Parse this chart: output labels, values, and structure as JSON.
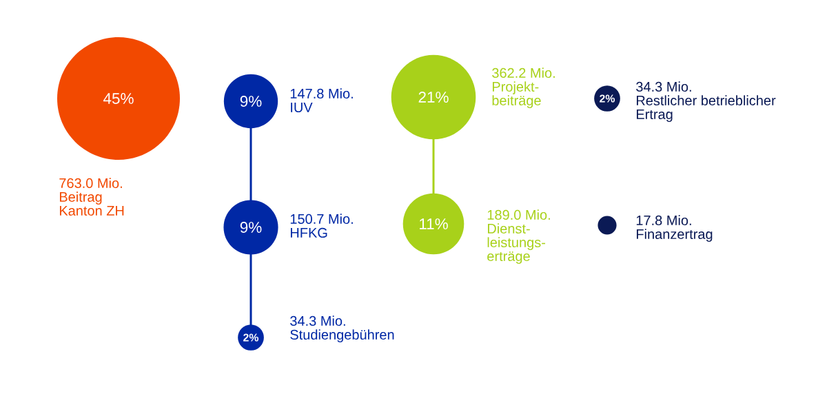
{
  "chart_data": {
    "type": "other",
    "categories": [
      "Beitrag Kanton ZH",
      "IUV",
      "HFKG",
      "Studiengebühren",
      "Projekt-beiträge",
      "Dienst-leistungs-erträge",
      "Restlicher betrieblicher Ertrag",
      "Finanzertrag"
    ],
    "values": [
      763.0,
      147.8,
      150.7,
      34.3,
      362.2,
      189.0,
      34.3,
      17.8
    ],
    "value_labels": [
      "763.0 Mio.",
      "147.8 Mio.",
      "150.7 Mio.",
      "34.3 Mio.",
      "362.2 Mio.",
      "189.0 Mio.",
      "34.3 Mio.",
      "17.8 Mio."
    ],
    "colors": [
      "#f24900",
      "#0028a5",
      "#0028a5",
      "#0028a5",
      "#a8d11a",
      "#a8d11a",
      "#0b1a55",
      "#0b1a55"
    ],
    "annotations": [
      "45%",
      "9%",
      "9%",
      "2%",
      "21%",
      "11%",
      "2%"
    ]
  }
}
